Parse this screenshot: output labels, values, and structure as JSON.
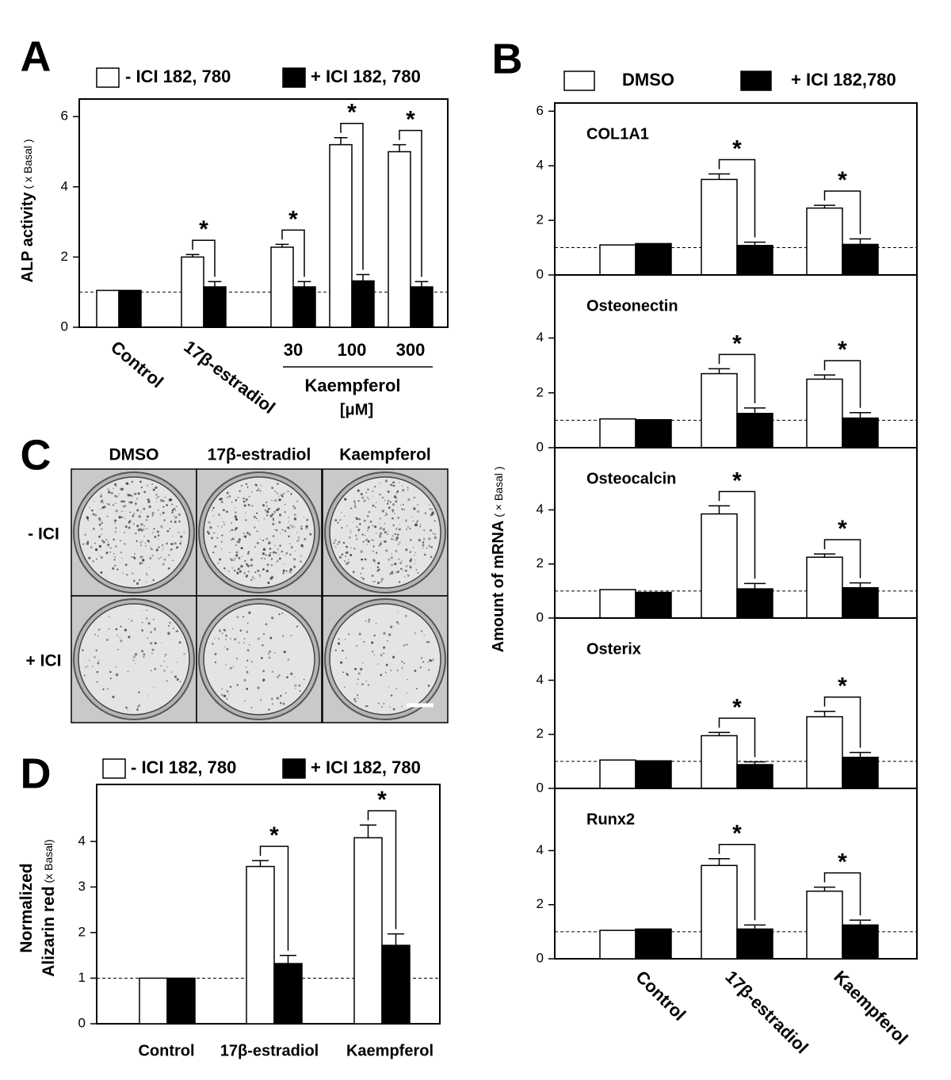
{
  "chart_data": [
    {
      "type": "bar",
      "panel_label": "A",
      "ylabel": "ALP activity",
      "ylabel_unit": "( x Basal )",
      "categories": [
        "Control",
        "17β-estradiol",
        "30",
        "100",
        "300"
      ],
      "category_group": {
        "label": "Kaempferol",
        "unit": "[μM]"
      },
      "series": [
        {
          "name": "- ICI 182, 780",
          "color": "#ffffff",
          "values": [
            1.05,
            2.0,
            2.28,
            5.2,
            5.0
          ],
          "errors": [
            null,
            0.07,
            0.08,
            0.2,
            0.2
          ]
        },
        {
          "name": "+ ICI 182, 780",
          "color": "#000000",
          "values": [
            1.05,
            1.15,
            1.15,
            1.32,
            1.15
          ],
          "errors": [
            null,
            0.15,
            0.15,
            0.18,
            0.15
          ]
        }
      ],
      "annotations": [
        null,
        "*",
        "*",
        "*",
        "*"
      ],
      "reference_line": 1,
      "ylim": [
        0,
        6.5
      ],
      "yticks": [
        0,
        2,
        4,
        6
      ]
    },
    {
      "type": "bar-panels",
      "panel_label": "B",
      "ylabel": "Amount of mRNA",
      "ylabel_unit": "( × Basal )",
      "categories": [
        "Control",
        "17β-estradiol",
        "Kaempferol"
      ],
      "legend": [
        {
          "name": "DMSO",
          "color": "#ffffff"
        },
        {
          "name": "+ ICI 182,780",
          "color": "#000000"
        }
      ],
      "reference_line": 1,
      "ylim": [
        0,
        6.3
      ],
      "subplots": [
        {
          "title": "COL1A1",
          "yticks": [
            0,
            2,
            4,
            6
          ],
          "annotations": [
            null,
            "*",
            "*"
          ],
          "series": [
            {
              "values": [
                1.1,
                3.5,
                2.45
              ],
              "errors": [
                null,
                0.2,
                0.1
              ]
            },
            {
              "values": [
                1.15,
                1.08,
                1.12
              ],
              "errors": [
                null,
                0.12,
                0.2
              ]
            }
          ]
        },
        {
          "title": "Osteonectin",
          "yticks": [
            0,
            2,
            4
          ],
          "annotations": [
            null,
            "*",
            "*"
          ],
          "series": [
            {
              "values": [
                1.05,
                2.7,
                2.5
              ],
              "errors": [
                null,
                0.18,
                0.15
              ]
            },
            {
              "values": [
                1.02,
                1.25,
                1.08
              ],
              "errors": [
                null,
                0.2,
                0.2
              ]
            }
          ]
        },
        {
          "title": "Osteocalcin",
          "yticks": [
            0,
            2,
            4
          ],
          "annotations": [
            null,
            "*",
            "*"
          ],
          "series": [
            {
              "values": [
                1.05,
                3.85,
                2.25
              ],
              "errors": [
                null,
                0.3,
                0.12
              ]
            },
            {
              "values": [
                0.95,
                1.08,
                1.12
              ],
              "errors": [
                null,
                0.2,
                0.18
              ]
            }
          ]
        },
        {
          "title": "Osterix",
          "yticks": [
            0,
            2,
            4
          ],
          "annotations": [
            null,
            "*",
            "*"
          ],
          "series": [
            {
              "values": [
                1.05,
                1.95,
                2.65
              ],
              "errors": [
                null,
                0.12,
                0.2
              ]
            },
            {
              "values": [
                1.02,
                0.88,
                1.15
              ],
              "errors": [
                null,
                0.1,
                0.18
              ]
            }
          ]
        },
        {
          "title": "Runx2",
          "yticks": [
            0,
            2,
            4
          ],
          "annotations": [
            null,
            "*",
            "*"
          ],
          "series": [
            {
              "values": [
                1.05,
                3.45,
                2.5
              ],
              "errors": [
                null,
                0.25,
                0.15
              ]
            },
            {
              "values": [
                1.1,
                1.1,
                1.25
              ],
              "errors": [
                null,
                0.15,
                0.18
              ]
            }
          ]
        }
      ]
    },
    {
      "type": "bar",
      "panel_label": "D",
      "ylabel": "Normalized",
      "ylabel_line2": "Alizarin red",
      "ylabel_unit": "(x Basal)",
      "categories": [
        "Control",
        "17β-estradiol",
        "Kaempferol"
      ],
      "series": [
        {
          "name": "- ICI 182, 780",
          "color": "#ffffff",
          "values": [
            1.0,
            3.45,
            4.08
          ],
          "errors": [
            null,
            0.13,
            0.28
          ]
        },
        {
          "name": "+ ICI 182, 780",
          "color": "#000000",
          "values": [
            1.0,
            1.32,
            1.72
          ],
          "errors": [
            null,
            0.18,
            0.25
          ]
        }
      ],
      "annotations": [
        null,
        "*",
        "*"
      ],
      "reference_line": 1,
      "ylim": [
        0,
        5.25
      ],
      "yticks": [
        0,
        1,
        2,
        3,
        4
      ]
    }
  ],
  "image_panel": {
    "label": "C",
    "columns": [
      "DMSO",
      "17β-estradiol",
      "Kaempferol"
    ],
    "rows": [
      "- ICI",
      "+ ICI"
    ]
  }
}
